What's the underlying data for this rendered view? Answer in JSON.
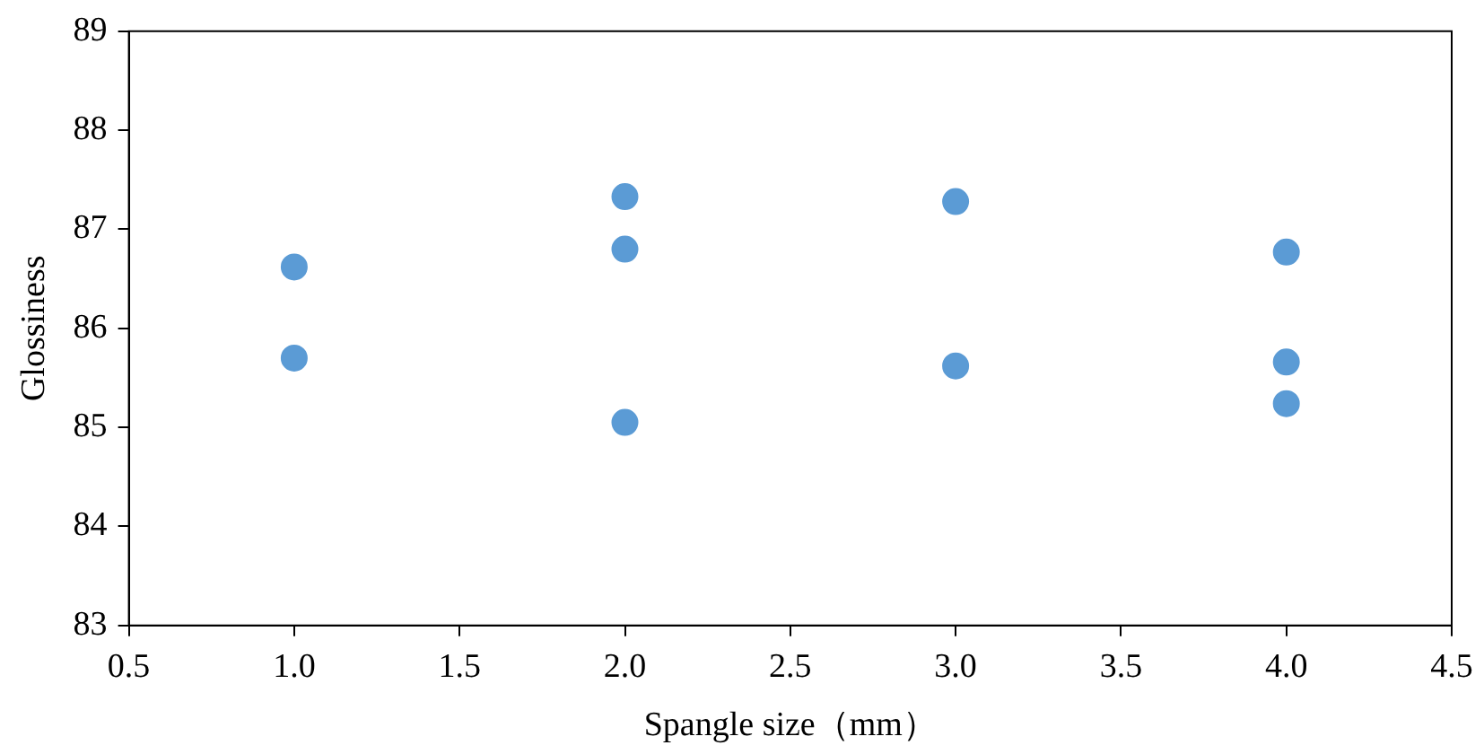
{
  "chart_data": {
    "type": "scatter",
    "xlabel": "Spangle size（mm）",
    "ylabel": "Glossiness",
    "x": [
      1.0,
      1.0,
      2.0,
      2.0,
      2.0,
      3.0,
      3.0,
      4.0,
      4.0,
      4.0
    ],
    "values": [
      86.62,
      85.7,
      87.33,
      86.8,
      85.05,
      87.28,
      85.62,
      86.77,
      85.66,
      85.24
    ],
    "color": "#5b9bd5",
    "marker": "circle",
    "xlim": [
      0.5,
      4.5
    ],
    "xticks": [
      {
        "value": 0.5,
        "label": "0.5"
      },
      {
        "value": 1,
        "label": "1.0"
      },
      {
        "value": 1.5,
        "label": "1.5"
      },
      {
        "value": 2,
        "label": "2.0"
      },
      {
        "value": 2.5,
        "label": "2.5"
      },
      {
        "value": 3,
        "label": "3.0"
      },
      {
        "value": 3.5,
        "label": "3.5"
      },
      {
        "value": 4,
        "label": "4.0"
      },
      {
        "value": 4.5,
        "label": "4.5"
      }
    ],
    "ylim": [
      83,
      89
    ],
    "yticks": [
      83,
      84,
      85,
      86,
      87,
      88,
      89
    ],
    "grid": false,
    "legend": false
  }
}
